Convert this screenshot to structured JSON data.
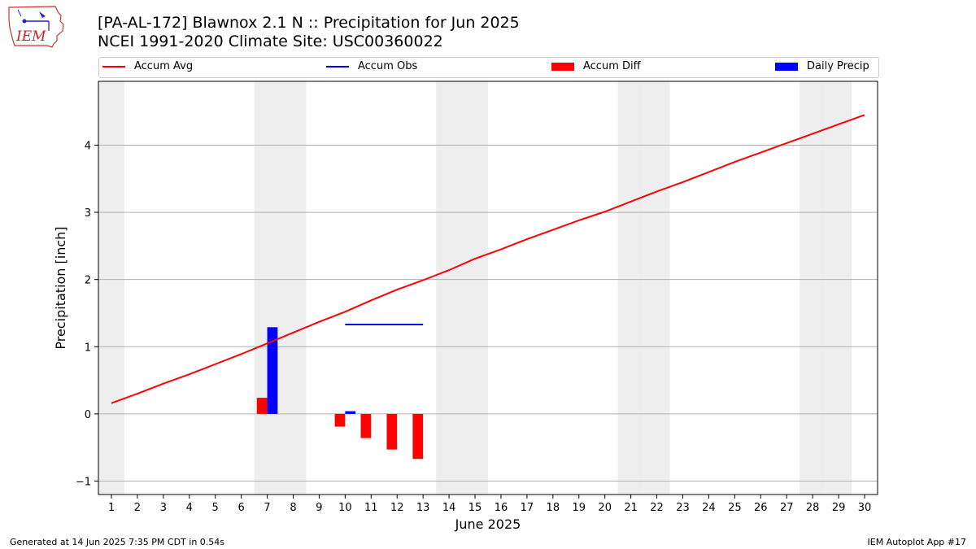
{
  "title": "[PA-AL-172] Blawnox 2.1 N :: Precipitation for Jun 2025",
  "subtitle": "NCEI 1991-2020 Climate Site: USC00360022",
  "logo_text": "IEM",
  "footer_left": "Generated at 14 Jun 2025 7:35 PM CDT in 0.54s",
  "footer_right": "IEM Autoplot App #17",
  "colors": {
    "avg": "#ff0000",
    "obs": "#0000ff",
    "diff": "#ff0000",
    "daily": "#0000ff",
    "weekend": "#eeeeee",
    "grid": "#b0b0b0"
  },
  "legend": {
    "avg": "Accum Avg",
    "obs": "Accum Obs",
    "diff": "Accum Diff",
    "daily": "Daily Precip"
  },
  "chart_data": {
    "type": "bar",
    "xlabel": "June 2025",
    "ylabel": "Precipitation [inch]",
    "xlim": [
      0.5,
      30.5
    ],
    "ylim": [
      -1.2,
      4.95
    ],
    "yticks": [
      -1,
      0,
      1,
      2,
      3,
      4
    ],
    "days": [
      1,
      2,
      3,
      4,
      5,
      6,
      7,
      8,
      9,
      10,
      11,
      12,
      13,
      14,
      15,
      16,
      17,
      18,
      19,
      20,
      21,
      22,
      23,
      24,
      25,
      26,
      27,
      28,
      29,
      30
    ],
    "weekend_days": [
      1,
      7,
      8,
      14,
      15,
      21,
      22,
      28,
      29
    ],
    "grid": "horizontal",
    "legend_position": "top",
    "series": [
      {
        "name": "Accum Avg",
        "type": "line",
        "x": [
          1,
          2,
          3,
          4,
          5,
          6,
          7,
          8,
          9,
          10,
          11,
          12,
          13,
          14,
          15,
          16,
          17,
          18,
          19,
          20,
          21,
          22,
          23,
          24,
          25,
          26,
          27,
          28,
          29,
          30
        ],
        "values": [
          0.16,
          0.3,
          0.45,
          0.59,
          0.74,
          0.89,
          1.05,
          1.21,
          1.37,
          1.52,
          1.69,
          1.85,
          1.99,
          2.14,
          2.31,
          2.45,
          2.6,
          2.74,
          2.88,
          3.01,
          3.16,
          3.31,
          3.45,
          3.6,
          3.75,
          3.89,
          4.03,
          4.17,
          4.31,
          4.45
        ]
      },
      {
        "name": "Accum Obs",
        "type": "line",
        "x": [
          10,
          13
        ],
        "values": [
          1.33,
          1.33
        ]
      },
      {
        "name": "Accum Diff",
        "type": "bar",
        "x": [
          7,
          10,
          11,
          12,
          13
        ],
        "values": [
          0.24,
          -0.19,
          -0.36,
          -0.53,
          -0.67
        ]
      },
      {
        "name": "Daily Precip",
        "type": "bar",
        "x": [
          7,
          10
        ],
        "values": [
          1.29,
          0.04
        ]
      }
    ]
  }
}
